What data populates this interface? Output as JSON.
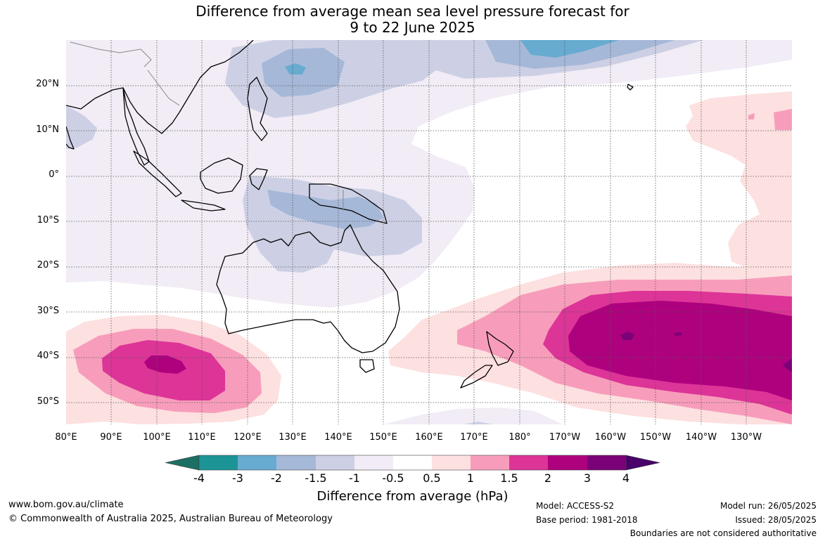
{
  "title": {
    "line1": "Difference from average mean sea level pressure forecast for",
    "line2": "9 to 22 June 2025"
  },
  "map": {
    "lat_labels": [
      "20°N",
      "10°N",
      "0°",
      "10°S",
      "20°S",
      "30°S",
      "40°S",
      "50°S"
    ],
    "lon_labels": [
      "80°E",
      "90°E",
      "100°E",
      "110°E",
      "120°E",
      "130°E",
      "140°E",
      "150°E",
      "160°E",
      "170°E",
      "180°",
      "170°W",
      "160°W",
      "150°W",
      "140°W",
      "130°W"
    ],
    "colors": {
      "ocean_bg": "#ffffff",
      "land_outline": "#000000",
      "gridline": "#555555"
    }
  },
  "legend": {
    "title": "Difference from average (hPa)",
    "ticks": [
      "-4",
      "-3",
      "-2",
      "-1.5",
      "-1",
      "-0.5",
      "0.5",
      "1",
      "1.5",
      "2",
      "3",
      "4"
    ],
    "bins": [
      {
        "range": "< -4",
        "color": "#1b6f63"
      },
      {
        "range": "-4 to -3",
        "color": "#1c9496"
      },
      {
        "range": "-3 to -2",
        "color": "#67abd0"
      },
      {
        "range": "-2 to -1.5",
        "color": "#a6b8d8"
      },
      {
        "range": "-1.5 to -1",
        "color": "#cdd0e4"
      },
      {
        "range": "-1 to -0.5",
        "color": "#f1ecf5"
      },
      {
        "range": "-0.5 to 0.5",
        "color": "#ffffff"
      },
      {
        "range": "0.5 to 1",
        "color": "#fde0e0"
      },
      {
        "range": "1 to 1.5",
        "color": "#f79dbb"
      },
      {
        "range": "1.5 to 2",
        "color": "#dd3497"
      },
      {
        "range": "2 to 3",
        "color": "#ae017e"
      },
      {
        "range": "3 to 4",
        "color": "#7a0177"
      },
      {
        "range": "> 4",
        "color": "#49006a"
      }
    ]
  },
  "footer": {
    "website": "www.bom.gov.au/climate",
    "copyright": "© Commonwealth of Australia 2025, Australian Bureau of Meteorology",
    "model": "Model: ACCESS-S2",
    "base_period": "Base period: 1981-2018",
    "model_run": "Model run: 26/05/2025",
    "issued": "Issued: 28/05/2025",
    "disclaimer": "Boundaries are not considered authoritative"
  }
}
